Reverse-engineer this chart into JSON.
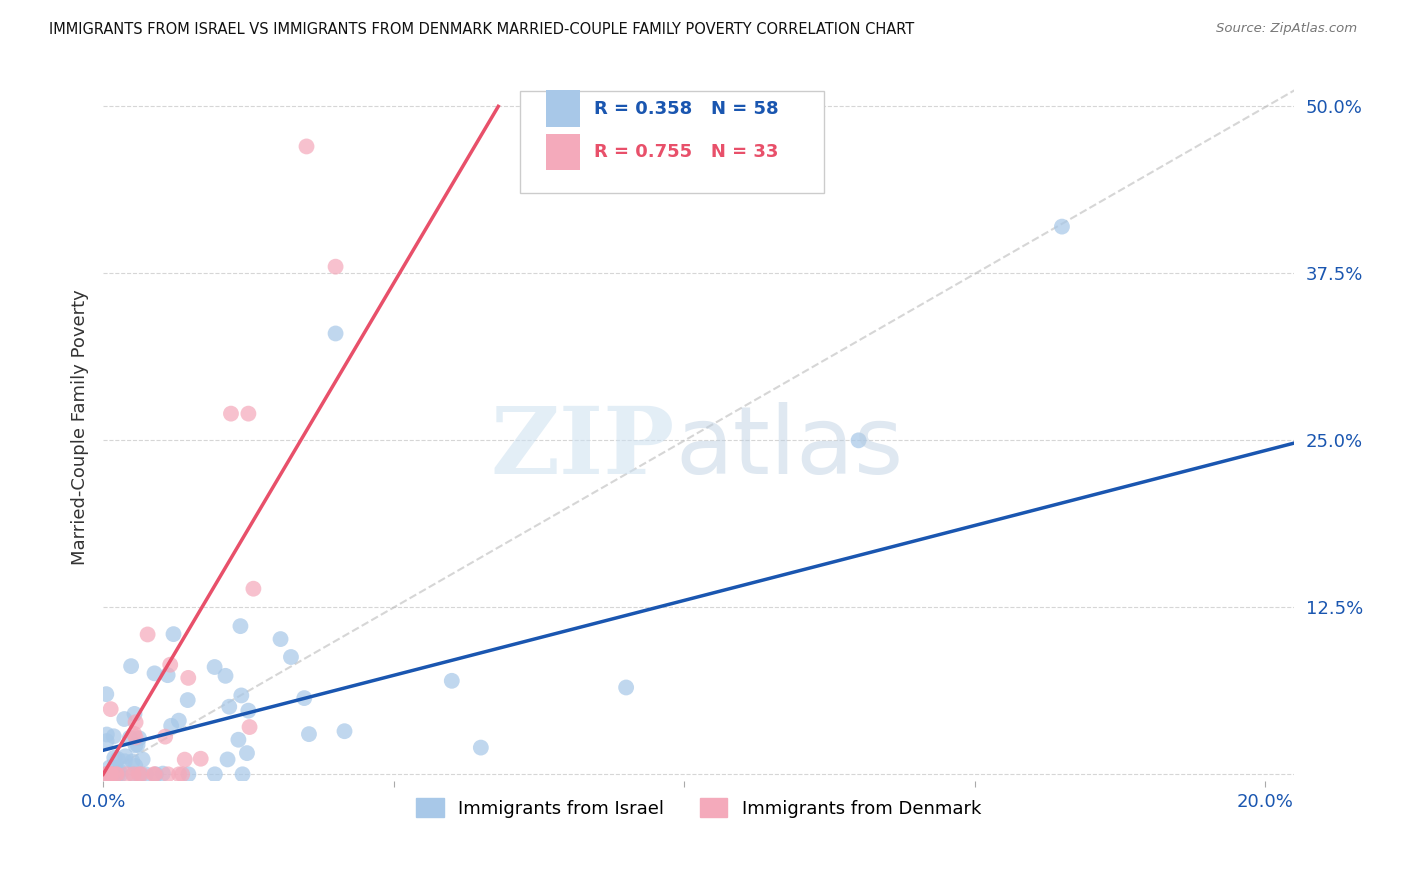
{
  "title": "IMMIGRANTS FROM ISRAEL VS IMMIGRANTS FROM DENMARK MARRIED-COUPLE FAMILY POVERTY CORRELATION CHART",
  "source": "Source: ZipAtlas.com",
  "ylabel_label": "Married-Couple Family Poverty",
  "legend_label1": "Immigrants from Israel",
  "legend_label2": "Immigrants from Denmark",
  "R1": "0.358",
  "N1": "58",
  "R2": "0.755",
  "N2": "33",
  "color1": "#a8c8e8",
  "color2": "#f4aabb",
  "line1_color": "#1a56b0",
  "line2_color": "#e8506a",
  "diag_color": "#bbbbbb",
  "watermark_zip_color": "#cce0f0",
  "watermark_atlas_color": "#b8cce0",
  "background": "#ffffff",
  "grid_color": "#cccccc",
  "tick_color": "#1a56b0",
  "title_color": "#111111",
  "source_color": "#777777",
  "ylabel_color": "#333333",
  "xlim": [
    0.0,
    0.205
  ],
  "ylim": [
    -0.005,
    0.525
  ],
  "xticks": [
    0.0,
    0.05,
    0.1,
    0.15,
    0.2
  ],
  "xticklabels": [
    "0.0%",
    "",
    "",
    "",
    "20.0%"
  ],
  "yticks": [
    0.0,
    0.125,
    0.25,
    0.375,
    0.5
  ],
  "yticklabels": [
    "",
    "12.5%",
    "25.0%",
    "37.5%",
    "50.0%"
  ],
  "israel_line_x": [
    0.0,
    0.205
  ],
  "israel_line_y": [
    0.018,
    0.248
  ],
  "denmark_line_x": [
    0.0,
    0.068
  ],
  "denmark_line_y": [
    0.0,
    0.5
  ],
  "diag_line_x": [
    0.0,
    0.205
  ],
  "diag_line_y": [
    0.0,
    0.512
  ]
}
